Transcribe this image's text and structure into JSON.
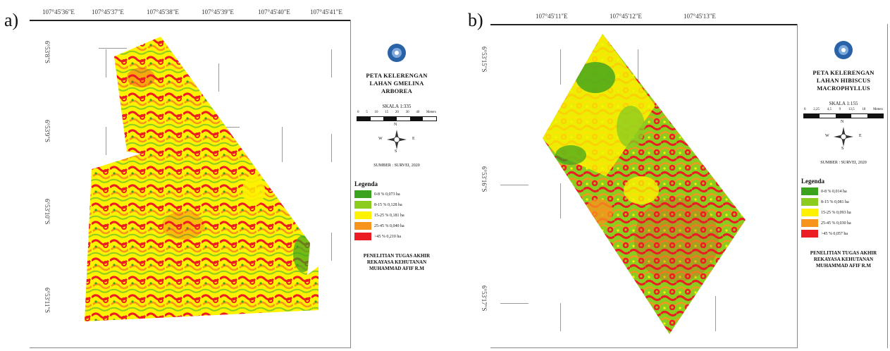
{
  "colors": {
    "slope_0_8": "#3aa21e",
    "slope_8_15": "#8ccc1f",
    "slope_15_25": "#fef200",
    "slope_25_45": "#f7941d",
    "slope_gt45": "#ec1c24"
  },
  "panel_a": {
    "label": "a)",
    "top_coords": [
      "107°45'36\"E",
      "107°45'37\"E",
      "107°45'38\"E",
      "107°45'39\"E",
      "107°45'40\"E",
      "107°45'41\"E"
    ],
    "left_coords": [
      "6°53'8\"S",
      "6°53'9\"S",
      "6°53'10\"S",
      "6°53'11\"S"
    ],
    "title_line1": "PETA KELERENGAN",
    "title_line2": "LAHAN GMELINA ARBOREA",
    "scale_label": "SKALA 1:335",
    "scale_numbers": [
      "0",
      "5",
      "10",
      "15",
      "20",
      "30",
      "40"
    ],
    "scale_unit": "Meters",
    "north_label": "N",
    "south_label": "S",
    "west_label": "W",
    "east_label": "E",
    "source": "SUMBER : SURVEI, 2020",
    "legend_title": "Legenda",
    "legend": [
      {
        "text": "0-8 %    0,073 ha",
        "color_key": "slope_0_8"
      },
      {
        "text": "8-15 %    0,128 ha",
        "color_key": "slope_8_15"
      },
      {
        "text": "15-25 %    0,181 ha",
        "color_key": "slope_15_25"
      },
      {
        "text": "25-45 %    0,040 ha",
        "color_key": "slope_25_45"
      },
      {
        "text": ">45 %    0,210 ha",
        "color_key": "slope_gt45"
      }
    ],
    "credit": [
      "PENELITIAN TUGAS AKHIR",
      "REKAYASA KEHUTANAN",
      "MUHAMMAD AFIF R.M"
    ]
  },
  "panel_b": {
    "label": "b)",
    "top_coords": [
      "107°45'11\"E",
      "107°45'12\"E",
      "107°45'13\"E"
    ],
    "left_coords": [
      "6°53'15\"S",
      "6°53'16\"S",
      "6°53'17\"S"
    ],
    "title_line1": "PETA KELERENGAN",
    "title_line2": "LAHAN HIBISCUS MACROPHYLLUS",
    "scale_label": "SKALA 1:155",
    "scale_numbers": [
      "0",
      "2,25",
      "4,5",
      "9",
      "13,5",
      "18"
    ],
    "scale_unit": "Meters",
    "north_label": "N",
    "south_label": "S",
    "west_label": "W",
    "east_label": "E",
    "source": "SUMBER : SURVEI, 2020",
    "legend_title": "Legenda",
    "legend": [
      {
        "text": "0-8 %    0,014 ha",
        "color_key": "slope_0_8"
      },
      {
        "text": "8-15 %    0,081 ha",
        "color_key": "slope_8_15"
      },
      {
        "text": "15-25 %    0,093 ha",
        "color_key": "slope_15_25"
      },
      {
        "text": "25-45 %    0,030 ha",
        "color_key": "slope_25_45"
      },
      {
        "text": ">45 %    0,057 ha",
        "color_key": "slope_gt45"
      }
    ],
    "credit": [
      "PENELITIAN TUGAS AKHIR",
      "REKAYASA KEHUTANAN",
      "MUHAMMAD AFIF R.M"
    ]
  }
}
